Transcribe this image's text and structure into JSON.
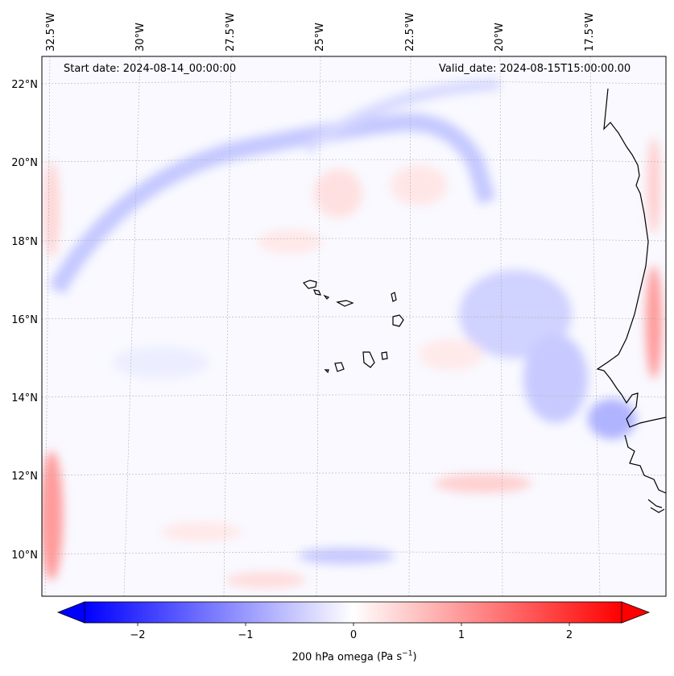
{
  "map": {
    "start_date": "Start date: 2024-08-14_00:00:00",
    "valid_date": "Valid_date: 2024-08-15T15:00:00.00",
    "lon_labels": [
      "32.5°W",
      "30°W",
      "27.5°W",
      "25°W",
      "22.5°W",
      "20°W",
      "17.5°W"
    ],
    "lat_labels": [
      "22°N",
      "20°N",
      "18°N",
      "16°N",
      "14°N",
      "12°N",
      "10°N"
    ],
    "variable": "200 hPa omega",
    "units_base": "(Pa s",
    "units_exp": "−1",
    "units_close": ")",
    "colorbar_ticks": [
      "−2",
      "−1",
      "0",
      "1",
      "2"
    ],
    "colorbar_range": [
      -2.7,
      2.7
    ],
    "colormap": "bwr",
    "colors": {
      "negative": "#0000ff",
      "zero": "#ffffff",
      "positive": "#ff0000",
      "coastline": "#000000"
    }
  }
}
